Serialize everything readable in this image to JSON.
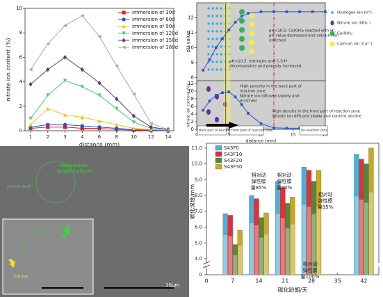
{
  "chart_data": [
    {
      "type": "line",
      "xlabel": "distance (mm)",
      "ylabel": "nitrate ion content (%)",
      "categories": [
        "1",
        "2",
        "3",
        "4",
        "6",
        "8",
        "10",
        "12",
        "14"
      ],
      "ylim": [
        0,
        10
      ],
      "yticks": [
        0,
        2,
        4,
        6,
        8,
        10
      ],
      "series": [
        {
          "name": "immersion of 30d",
          "color": "#e8191e",
          "marker": "square",
          "values": [
            0.2,
            0.3,
            0.3,
            0.2,
            0.2,
            0.1,
            0.05,
            0.02,
            0
          ]
        },
        {
          "name": "immersion of 60d",
          "color": "#2a4fcc",
          "marker": "circle",
          "values": [
            0.3,
            0.5,
            0.5,
            0.4,
            0.3,
            0.2,
            0.1,
            0.05,
            0.02
          ]
        },
        {
          "name": "immersion of 90d",
          "color": "#f2c316",
          "marker": "triangle-up",
          "values": [
            0.5,
            1.8,
            1.3,
            1.1,
            0.8,
            0.5,
            0.2,
            0.1,
            0.05
          ]
        },
        {
          "name": "immersion of 120d",
          "color": "#3fcf70",
          "marker": "triangle-down",
          "values": [
            1.0,
            2.9,
            4.1,
            3.6,
            2.9,
            1.8,
            0.7,
            0.2,
            0.1
          ]
        },
        {
          "name": "immersion of 150d",
          "color": "#5a3b8c",
          "marker": "diamond",
          "values": [
            3.8,
            5.0,
            6.0,
            5.0,
            3.9,
            2.6,
            1.2,
            0.3,
            0.1
          ]
        },
        {
          "name": "immersion of 180d",
          "color": "#a8a8a8",
          "marker": "triangle-left",
          "values": [
            5.0,
            7.1,
            8.6,
            9.4,
            7.7,
            5.3,
            3.0,
            0.6,
            0.1
          ]
        }
      ]
    },
    {
      "type": "line",
      "ylabel": "pH value",
      "x": [
        1,
        2,
        3,
        4,
        5,
        6,
        7,
        8,
        10,
        12,
        14,
        16,
        18,
        20
      ],
      "xlim": [
        0,
        20
      ],
      "ylim": [
        7.8,
        13
      ],
      "yticks": [
        8,
        9,
        10,
        11,
        12
      ],
      "vlines": [
        4.5,
        12
      ],
      "series": [
        {
          "color": "#2a4fcc",
          "values": [
            8.5,
            9.2,
            10.0,
            10.6,
            11.2,
            11.7,
            12.1,
            12.3,
            12.4,
            12.4,
            12.4,
            12.4,
            12.4,
            12.4
          ]
        }
      ],
      "annotations": [
        "pH>10.5: Ca(OH)₂ reacted with H⁺,",
        "pH value decreased and calcium ion",
        "enriched.",
        "pH<10.5: ettringite and C-S-H",
        "decomposited and porosity increased"
      ],
      "legend": [
        "Hydrogen ion (H⁺)",
        "Nitrate ion (NO₃⁻)",
        "Ca(OH)₂",
        "Calcium ion (Ca²⁺)"
      ]
    },
    {
      "type": "line",
      "xlabel": "distance (mm)",
      "ylabel": "nitrate ion content (%)",
      "x": [
        1,
        2,
        3,
        4,
        5,
        6,
        7,
        8,
        10,
        12,
        14,
        16,
        18,
        20
      ],
      "xlim": [
        0,
        20
      ],
      "xticks": [
        0,
        5,
        10,
        15,
        20
      ],
      "ylim": [
        0,
        12
      ],
      "yticks": [
        0,
        2,
        4,
        6,
        8,
        10,
        12
      ],
      "vlines": [
        4.5,
        12
      ],
      "series": [
        {
          "color": "#2a4fcc",
          "values": [
            5.0,
            7.4,
            8.9,
            9.6,
            9.8,
            8.5,
            6.5,
            4.2,
            1.5,
            0.4,
            0.3,
            0.3,
            0.3,
            0.3
          ]
        }
      ],
      "annotations": [
        "High porosity in the back part of",
        "reaction zone",
        "Nitrate ion diffused rapidly and",
        "enriched",
        "High density in the front part of reaction zone",
        "Nitrate ion diffused slowly and content decline"
      ],
      "zones": [
        "Back part of reaction zone",
        "Front part of reaction zone",
        "Un-reaction zone"
      ]
    },
    {
      "type": "bar",
      "xlabel": "碳化龄期/天",
      "ylabel": "碳化深度/mm",
      "x": [
        7,
        14,
        21,
        28,
        42
      ],
      "xlim": [
        0,
        46
      ],
      "xticks": [
        0,
        7,
        14,
        21,
        28,
        35,
        42
      ],
      "ylim": [
        4,
        11.3
      ],
      "ybreak": true,
      "yticks": [
        0,
        {
          "value": 4,
          "label": "4.0"
        },
        {
          "value": 5,
          "label": "5.0"
        },
        {
          "value": 6,
          "label": "6.0"
        },
        {
          "value": 7,
          "label": "7.0"
        },
        {
          "value": 8,
          "label": "8.0"
        },
        {
          "value": 9,
          "label": "9.0"
        },
        {
          "value": 10,
          "label": "10.0"
        },
        {
          "value": 11,
          "label": "11.0"
        }
      ],
      "series": [
        {
          "name": "S43F0",
          "color": "#4ab2d8",
          "values": [
            6.85,
            8.0,
            8.9,
            9.8,
            10.6
          ]
        },
        {
          "name": "S43F10",
          "color": "#e0303a",
          "values": [
            6.75,
            7.8,
            8.5,
            9.6,
            10.3
          ]
        },
        {
          "name": "S43F20",
          "color": "#4f8a3c",
          "values": [
            4.9,
            6.6,
            7.5,
            8.9,
            10.0
          ]
        },
        {
          "name": "S43F30",
          "color": "#c9a826",
          "values": [
            5.8,
            6.9,
            7.9,
            9.6,
            11.0
          ]
        }
      ],
      "annotations": [
        "相对动",
        "弹性模",
        "量85%",
        "相对动",
        "弹性模",
        "量90%",
        "相对动",
        "弹性模",
        "量95%",
        "相对动",
        "弹性模",
        "量100%"
      ]
    }
  ],
  "image": {
    "labels": [
      "carbonation",
      "products layer",
      "pores wall",
      "nitrate",
      "10μm"
    ]
  }
}
